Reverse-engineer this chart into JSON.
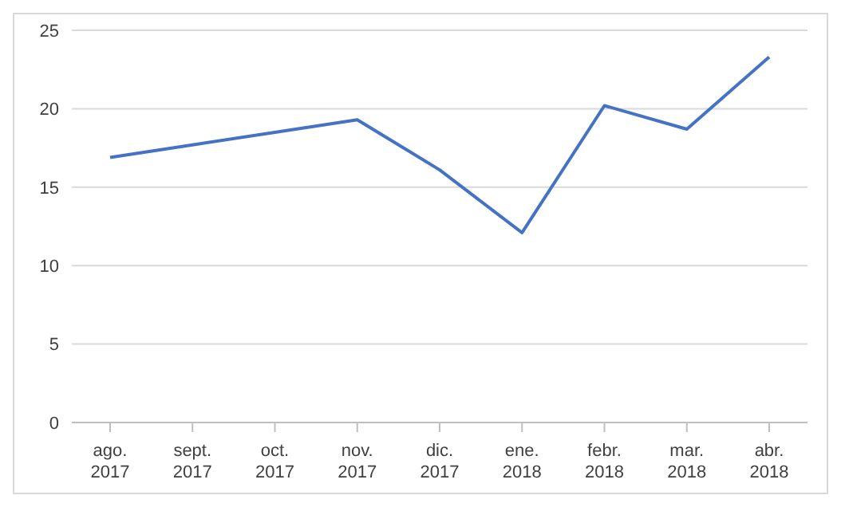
{
  "chart_data": {
    "type": "line",
    "categories": [
      "ago. 2017",
      "sept. 2017",
      "oct. 2017",
      "nov. 2017",
      "dic. 2017",
      "ene. 2018",
      "febr. 2018",
      "mar. 2018",
      "abr. 2018"
    ],
    "series": [
      {
        "color": "#4472c4",
        "values": [
          16.9,
          17.7,
          18.5,
          19.3,
          16.1,
          12.1,
          20.2,
          18.7,
          23.3
        ]
      }
    ],
    "ylim": [
      0,
      25
    ],
    "yticks": [
      0,
      5,
      10,
      15,
      20,
      25
    ],
    "grid": "y",
    "legend": false,
    "marker": "none",
    "line_style": "solid"
  }
}
